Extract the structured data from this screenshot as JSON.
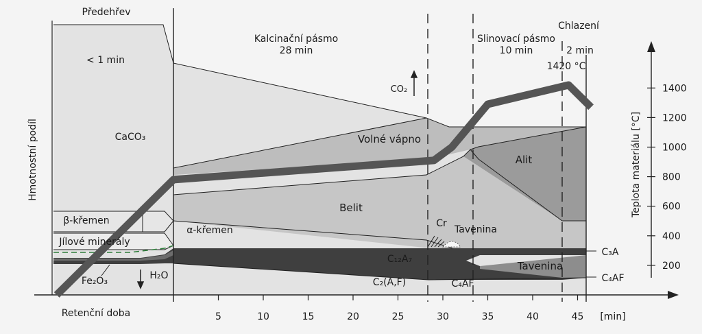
{
  "zones": {
    "preheat": "Předehřev",
    "calcination": "Kalcinační pásmo",
    "calcination_time": "28 min",
    "sintering": "Slinovací pásmo",
    "sintering_time": "10 min",
    "cooling": "Chlazení",
    "cooling_time": "2 min"
  },
  "labels": {
    "y_left": "Hmotnostní podíl",
    "y_right": "Teplota materiálu [°C]",
    "x_axis": "Retenční doba",
    "x_unit": "[min]",
    "time_short": "< 1 min",
    "max_temp": "1420 °C",
    "co2": "CO₂",
    "h2o": "H₂O"
  },
  "phases": {
    "caco3": "CaCO₃",
    "free_lime": "Volné vápno",
    "alit": "Alit",
    "belit": "Belit",
    "beta_quartz": "β-křemen",
    "alpha_quartz": "α-křemen",
    "clay": "Jílové minerály",
    "fe2o3": "Fe₂O₃",
    "cr": "Cr",
    "melt_upper": "Tavenina",
    "melt_lower": "Tavenina",
    "c12a7": "C₁₂A₇",
    "c2af": "C₂(A,F)",
    "c4af_mid": "C₄AF",
    "c3a": "C₃A",
    "c4af_right": "C₄AF"
  },
  "chart_data": {
    "type": "line",
    "x_ticks": [
      5,
      10,
      15,
      20,
      25,
      30,
      35,
      40,
      45
    ],
    "y_ticks": [
      200,
      400,
      600,
      800,
      1000,
      1200,
      1400
    ],
    "temperature_curve": {
      "x": [
        -13,
        0,
        29,
        31,
        35,
        44,
        46.5
      ],
      "y": [
        0,
        780,
        910,
        1000,
        1290,
        1420,
        1270
      ]
    }
  }
}
